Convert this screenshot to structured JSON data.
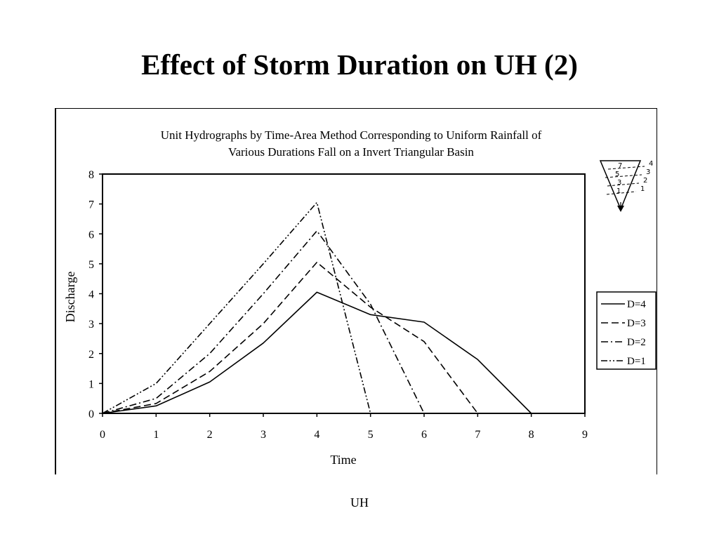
{
  "slide": {
    "title": "Effect of Storm Duration on UH (2)",
    "footer": "UH"
  },
  "chart_data": {
    "type": "line",
    "title": "Unit Hydrographs by Time-Area Method Corresponding to Uniform Rainfall of Various Durations Fall on a Invert Triangular Basin",
    "title_lines": [
      "Unit Hydrographs by Time-Area Method Corresponding to Uniform Rainfall of",
      "Various Durations Fall on a Invert Triangular Basin"
    ],
    "xlabel": "Time",
    "ylabel": "Discharge",
    "xlim": [
      0,
      9
    ],
    "ylim": [
      0,
      8
    ],
    "xticks": [
      0,
      1,
      2,
      3,
      4,
      5,
      6,
      7,
      8,
      9
    ],
    "yticks": [
      0,
      1,
      2,
      3,
      4,
      5,
      6,
      7,
      8
    ],
    "grid": false,
    "legend_position": "right",
    "series": [
      {
        "name": "D=4",
        "dash": "solid",
        "x": [
          0,
          1,
          2,
          3,
          4,
          5,
          6,
          7,
          8
        ],
        "y": [
          0,
          0.25,
          1.05,
          2.35,
          4.05,
          3.3,
          3.05,
          1.8,
          0
        ]
      },
      {
        "name": "D=3",
        "dash": "dashed",
        "x": [
          0,
          1,
          2,
          3,
          4,
          5,
          6,
          7
        ],
        "y": [
          0,
          0.33,
          1.4,
          3.0,
          5.05,
          3.55,
          2.4,
          0
        ]
      },
      {
        "name": "D=2",
        "dash": "dash-dot",
        "x": [
          0,
          1,
          2,
          3,
          4,
          5,
          6
        ],
        "y": [
          0,
          0.5,
          2.0,
          4.0,
          6.1,
          3.65,
          0
        ]
      },
      {
        "name": "D=1",
        "dash": "dash-dot-dot",
        "x": [
          0,
          1,
          2,
          3,
          4,
          5
        ],
        "y": [
          0,
          1.0,
          3.0,
          5.0,
          7.05,
          0
        ]
      }
    ]
  },
  "inset": {
    "inner_labels": [
      "7",
      "5",
      "3",
      "1"
    ],
    "outer_labels": [
      "4",
      "3",
      "2",
      "1"
    ]
  }
}
